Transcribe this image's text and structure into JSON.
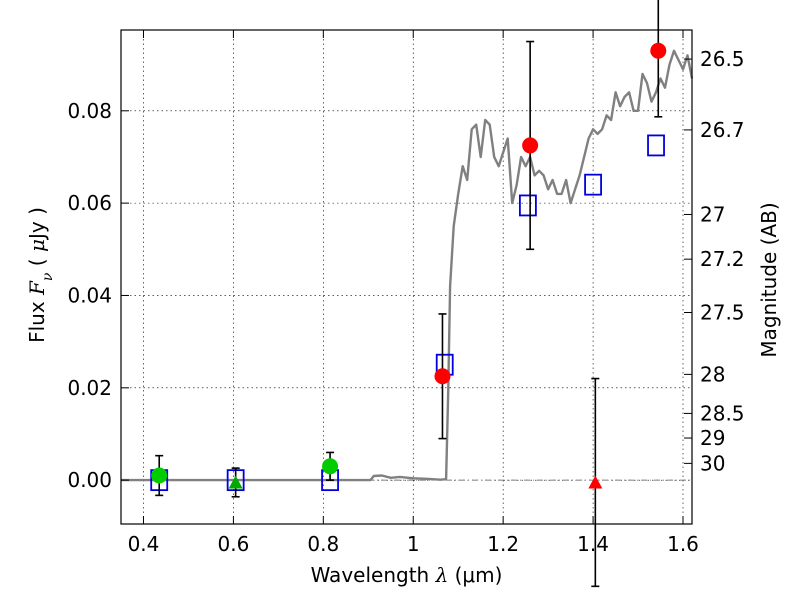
{
  "chart_data": {
    "type": "scatter",
    "xlabel": "Wavelength  λ (μm)",
    "xlabel_parts": {
      "pre": "Wavelength  ",
      "sym": "λ",
      "post": " (μm)"
    },
    "ylabel": "Flux  Fν  ( μJy )",
    "ylabel_parts": {
      "pre": "Flux  ",
      "sym": "F",
      "sub": "ν",
      "mid": "  ( ",
      "mu": "μ",
      "post": "Jy )"
    },
    "y2label": "Magnitude (AB)",
    "xlim": [
      0.35,
      1.62
    ],
    "ylim": [
      -0.0095,
      0.0975
    ],
    "grid": true,
    "x_ticks": [
      0.4,
      0.6,
      0.8,
      1.0,
      1.2,
      1.4,
      1.6
    ],
    "x_tick_labels": [
      "0.4",
      "0.6",
      "0.8",
      "1",
      "1.2",
      "1.4",
      "1.6"
    ],
    "y_ticks": [
      0.0,
      0.02,
      0.04,
      0.06,
      0.08
    ],
    "y_tick_labels": [
      "0.00",
      "0.02",
      "0.04",
      "0.06",
      "0.08"
    ],
    "mag_ticks": [
      {
        "value": 30,
        "label": "30"
      },
      {
        "value": 29,
        "label": "29"
      },
      {
        "value": 28.5,
        "label": "28.5"
      },
      {
        "value": 28,
        "label": "28"
      },
      {
        "value": 27.5,
        "label": "27.5"
      },
      {
        "value": 27.2,
        "label": "27.2"
      },
      {
        "value": 27,
        "label": "27"
      },
      {
        "value": 26.7,
        "label": "26.7"
      },
      {
        "value": 26.5,
        "label": "26.5"
      }
    ],
    "observed_detections": [
      {
        "x": 0.435,
        "y": 0.001,
        "err": 0.0043,
        "color": "#00cc00"
      },
      {
        "x": 0.815,
        "y": 0.003,
        "err": 0.003,
        "color": "#00cc00"
      },
      {
        "x": 1.065,
        "y": 0.0225,
        "err": 0.0135,
        "color": "#ff0000"
      },
      {
        "x": 1.26,
        "y": 0.0725,
        "err": 0.0225,
        "color": "#ff0000"
      },
      {
        "x": 1.545,
        "y": 0.093,
        "err": 0.0143,
        "color": "#ff0000"
      }
    ],
    "observed_upper_limits": [
      {
        "x": 0.605,
        "y": -0.0005,
        "err": 0.0031,
        "color": "#00aa00"
      },
      {
        "x": 1.405,
        "y": -0.0005,
        "err": 0.0225,
        "color": "#ff0000"
      }
    ],
    "model_photometry": [
      {
        "x": 0.435,
        "y": 0.0
      },
      {
        "x": 0.605,
        "y": 0.0
      },
      {
        "x": 0.815,
        "y": 0.0
      },
      {
        "x": 1.07,
        "y": 0.025
      },
      {
        "x": 1.255,
        "y": 0.0595
      },
      {
        "x": 1.4,
        "y": 0.064
      },
      {
        "x": 1.54,
        "y": 0.0725
      }
    ],
    "model_color": "#0000dd",
    "sed_color": "#808080",
    "sed_x": [
      0.35,
      0.905,
      0.912,
      0.93,
      0.95,
      0.97,
      1.0,
      1.03,
      1.06,
      1.073,
      1.078,
      1.082,
      1.09,
      1.1,
      1.11,
      1.12,
      1.13,
      1.14,
      1.15,
      1.16,
      1.17,
      1.18,
      1.19,
      1.2,
      1.21,
      1.22,
      1.23,
      1.24,
      1.25,
      1.26,
      1.27,
      1.28,
      1.29,
      1.3,
      1.31,
      1.32,
      1.33,
      1.34,
      1.35,
      1.36,
      1.37,
      1.38,
      1.39,
      1.4,
      1.41,
      1.42,
      1.43,
      1.44,
      1.45,
      1.46,
      1.47,
      1.48,
      1.49,
      1.5,
      1.51,
      1.52,
      1.53,
      1.54,
      1.55,
      1.56,
      1.57,
      1.58,
      1.59,
      1.6,
      1.61,
      1.62
    ],
    "sed_y": [
      0.0,
      0.0,
      0.0009,
      0.001,
      0.0005,
      0.0007,
      0.0004,
      0.0003,
      0.0001,
      0.0002,
      0.02,
      0.042,
      0.055,
      0.062,
      0.068,
      0.065,
      0.076,
      0.077,
      0.07,
      0.078,
      0.077,
      0.07,
      0.068,
      0.071,
      0.074,
      0.06,
      0.064,
      0.07,
      0.068,
      0.07,
      0.066,
      0.067,
      0.066,
      0.063,
      0.065,
      0.062,
      0.062,
      0.065,
      0.06,
      0.063,
      0.066,
      0.07,
      0.074,
      0.076,
      0.075,
      0.076,
      0.079,
      0.078,
      0.084,
      0.081,
      0.083,
      0.084,
      0.08,
      0.08,
      0.088,
      0.086,
      0.082,
      0.084,
      0.087,
      0.085,
      0.09,
      0.093,
      0.091,
      0.089,
      0.092,
      0.087
    ],
    "zero_line": 0.0
  }
}
